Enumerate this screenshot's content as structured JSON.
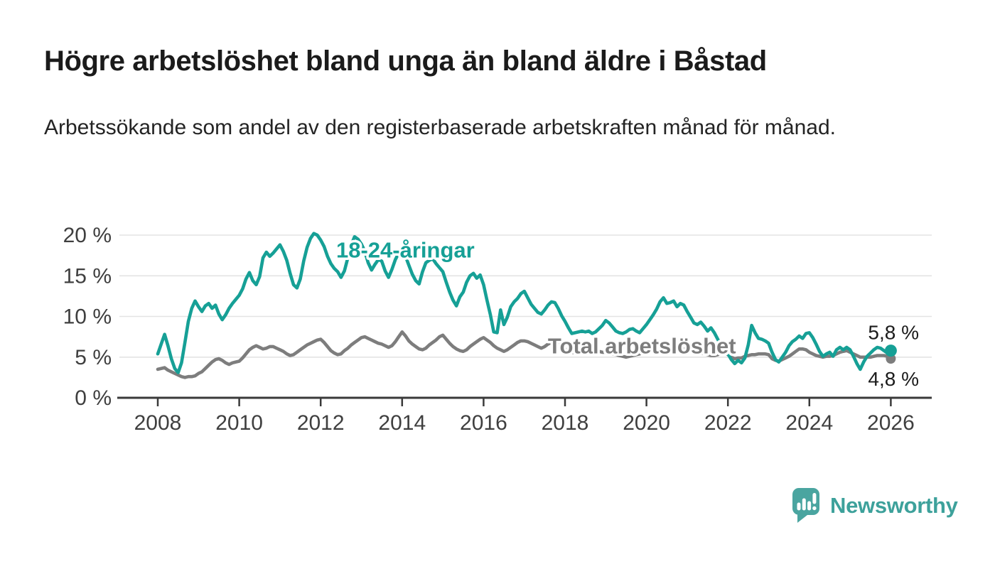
{
  "header": {
    "title": "Högre arbetslöshet bland unga än bland äldre i Båstad",
    "subtitle": "Arbetssökande som andel av den registerbaserade arbetskraften månad för månad."
  },
  "colors": {
    "text": "#1b1b1b",
    "accent": "#16a096",
    "gray": "#7d7d7d",
    "axis": "#3a3a3a",
    "tick_text": "#3f3f3f",
    "gridline": "#e3e3e3",
    "logo": "#4aa5a0",
    "wordmark": "#3da19b"
  },
  "chart_data": {
    "type": "line",
    "title": "Högre arbetslöshet bland unga än bland äldre i Båstad",
    "subtitle": "Arbetssökande som andel av den registerbaserade arbetskraften månad för månad.",
    "unit": "%",
    "grid": true,
    "x_range": [
      2008,
      2026
    ],
    "x_start_year": 2008,
    "x_step_months": 1,
    "x_ticks": [
      2008,
      2010,
      2012,
      2014,
      2016,
      2018,
      2020,
      2022,
      2024,
      2026
    ],
    "y_ticks": [
      "0 %",
      "5 %",
      "10 %",
      "15 %",
      "20 %"
    ],
    "ylim": [
      0,
      21
    ],
    "annotations": [
      {
        "text": "18-24-åringar",
        "color": "#16a096",
        "x_year": 2012.38,
        "y_value": 17.25
      },
      {
        "text": "Total arbetslöshet",
        "color": "#7d7d7d",
        "x_year": 2017.58,
        "y_value": 5.45
      }
    ],
    "series": [
      {
        "id": "total",
        "name": "Total arbetslöshet",
        "color": "#7d7d7d",
        "end_label": "4,8 %",
        "end_value": 4.8,
        "values": [
          3.5,
          3.6,
          3.7,
          3.4,
          3.2,
          3.0,
          2.8,
          2.6,
          2.5,
          2.6,
          2.6,
          2.7,
          3.0,
          3.2,
          3.6,
          4.0,
          4.4,
          4.7,
          4.8,
          4.6,
          4.3,
          4.1,
          4.3,
          4.4,
          4.5,
          4.9,
          5.4,
          5.9,
          6.2,
          6.4,
          6.2,
          6.0,
          6.1,
          6.3,
          6.3,
          6.1,
          5.9,
          5.7,
          5.4,
          5.2,
          5.3,
          5.6,
          5.9,
          6.2,
          6.5,
          6.7,
          6.9,
          7.1,
          7.2,
          6.8,
          6.3,
          5.8,
          5.5,
          5.3,
          5.4,
          5.8,
          6.1,
          6.5,
          6.8,
          7.1,
          7.4,
          7.5,
          7.3,
          7.1,
          6.9,
          6.7,
          6.6,
          6.4,
          6.2,
          6.4,
          6.9,
          7.5,
          8.1,
          7.6,
          7.0,
          6.6,
          6.3,
          6.0,
          5.9,
          6.1,
          6.5,
          6.8,
          7.1,
          7.5,
          7.7,
          7.2,
          6.7,
          6.3,
          6.0,
          5.8,
          5.7,
          5.9,
          6.3,
          6.6,
          6.9,
          7.2,
          7.4,
          7.1,
          6.8,
          6.4,
          6.1,
          5.9,
          5.7,
          5.9,
          6.2,
          6.5,
          6.8,
          7.0,
          7.0,
          6.9,
          6.7,
          6.5,
          6.3,
          6.1,
          6.3,
          6.6,
          6.8,
          6.7,
          6.5,
          6.2,
          6.0,
          5.8,
          5.6,
          5.5,
          5.4,
          5.5,
          5.6,
          5.7,
          5.8,
          5.8,
          5.7,
          5.6,
          5.6,
          5.5,
          5.4,
          5.3,
          5.2,
          5.1,
          5.0,
          5.1,
          5.2,
          5.3,
          5.4,
          5.6,
          5.8,
          6.0,
          6.2,
          6.4,
          6.5,
          6.5,
          6.4,
          6.4,
          6.3,
          6.2,
          6.1,
          6.0,
          5.9,
          5.8,
          5.7,
          5.6,
          5.5,
          5.4,
          5.3,
          5.2,
          5.2,
          5.3,
          5.5,
          5.6,
          5.3,
          5.0,
          4.8,
          4.9,
          4.9,
          5.1,
          5.2,
          5.3,
          5.3,
          5.4,
          5.4,
          5.4,
          5.3,
          4.8,
          4.6,
          4.5,
          4.7,
          4.9,
          5.1,
          5.4,
          5.7,
          6.0,
          6.0,
          5.9,
          5.6,
          5.4,
          5.2,
          5.1,
          5.0,
          5.1,
          5.1,
          5.2,
          5.4,
          5.6,
          5.7,
          5.8,
          5.6,
          5.4,
          5.2,
          5.0,
          5.0,
          5.0,
          5.0,
          5.1,
          5.2,
          5.2,
          5.2,
          5.1,
          4.8
        ]
      },
      {
        "id": "youth",
        "name": "18-24-åringar",
        "color": "#16a096",
        "end_label": "5,8 %",
        "end_value": 5.8,
        "values": [
          5.4,
          6.6,
          7.8,
          6.4,
          4.8,
          3.6,
          3.1,
          4.3,
          6.8,
          9.4,
          11.0,
          11.9,
          11.2,
          10.6,
          11.3,
          11.6,
          11.0,
          11.4,
          10.3,
          9.6,
          10.2,
          11.0,
          11.6,
          12.1,
          12.6,
          13.4,
          14.6,
          15.4,
          14.4,
          13.9,
          14.9,
          17.2,
          17.9,
          17.4,
          17.8,
          18.3,
          18.8,
          18.0,
          16.9,
          15.3,
          13.9,
          13.5,
          14.6,
          16.8,
          18.5,
          19.6,
          20.2,
          20.0,
          19.4,
          18.6,
          17.4,
          16.5,
          15.9,
          15.5,
          14.8,
          15.6,
          17.2,
          18.8,
          19.8,
          19.5,
          18.9,
          18.0,
          16.6,
          15.7,
          16.4,
          17.0,
          16.8,
          15.6,
          14.8,
          15.8,
          17.0,
          17.8,
          18.2,
          17.4,
          16.3,
          15.2,
          14.4,
          14.0,
          15.5,
          16.6,
          16.9,
          17.1,
          16.5,
          16.0,
          15.5,
          14.2,
          13.0,
          12.0,
          11.3,
          12.4,
          13.0,
          14.2,
          15.0,
          15.3,
          14.7,
          15.1,
          13.9,
          12.0,
          10.2,
          8.1,
          8.0,
          10.8,
          9.0,
          9.9,
          11.2,
          11.8,
          12.2,
          12.8,
          13.1,
          12.3,
          11.5,
          11.0,
          10.5,
          10.3,
          10.8,
          11.4,
          11.8,
          11.7,
          11.0,
          10.1,
          9.4,
          8.6,
          7.9,
          8.0,
          8.1,
          8.2,
          8.1,
          8.2,
          7.9,
          8.1,
          8.5,
          8.9,
          9.5,
          9.2,
          8.7,
          8.2,
          8.0,
          7.9,
          8.1,
          8.4,
          8.5,
          8.2,
          8.0,
          8.5,
          9.0,
          9.6,
          10.2,
          10.9,
          11.8,
          12.3,
          11.6,
          11.7,
          11.9,
          11.2,
          11.6,
          11.4,
          10.6,
          9.9,
          9.2,
          9.0,
          9.3,
          8.8,
          8.2,
          8.6,
          8.0,
          7.2,
          6.4,
          5.9,
          5.4,
          4.7,
          4.2,
          4.6,
          4.3,
          4.9,
          6.5,
          8.9,
          8.0,
          7.3,
          7.2,
          7.0,
          6.7,
          5.6,
          4.7,
          4.4,
          5.0,
          5.6,
          6.4,
          6.9,
          7.2,
          7.6,
          7.3,
          7.9,
          8.0,
          7.4,
          6.6,
          5.7,
          5.1,
          5.4,
          5.6,
          5.1,
          5.9,
          6.2,
          5.9,
          6.2,
          5.9,
          5.1,
          4.2,
          3.5,
          4.4,
          5.1,
          5.5,
          5.9,
          6.2,
          6.1,
          5.8,
          5.5,
          5.8
        ]
      }
    ]
  },
  "footer": {
    "brand": "Newsworthy"
  }
}
